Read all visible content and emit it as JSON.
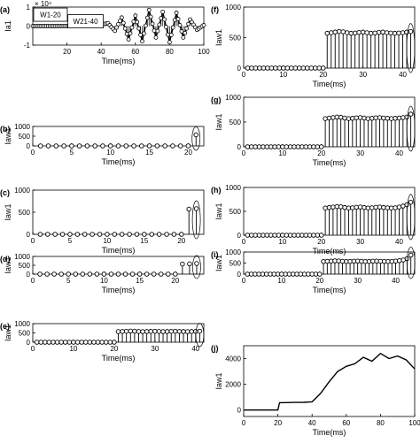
{
  "chart_data": [
    {
      "id": "a",
      "panel_label": "(a)",
      "type": "line",
      "xlabel": "Time(ms)",
      "ylabel": "Ia1",
      "xlim": [
        0,
        100
      ],
      "ylim": [
        -1,
        1
      ],
      "xticks": [
        "20",
        "40",
        "60",
        "80",
        "100"
      ],
      "yticks": [
        "-1",
        "0",
        "1"
      ],
      "exponent": "× 10⁴",
      "annotations": [
        "W1-20",
        "W21-40"
      ],
      "x": [
        0,
        4,
        8,
        12,
        16,
        20,
        24,
        28,
        32,
        36,
        40,
        44,
        48,
        52,
        56,
        60,
        64,
        68,
        72,
        76,
        80,
        84,
        88,
        92,
        96,
        100
      ],
      "y": [
        0,
        0,
        0,
        0,
        0,
        0,
        0,
        0,
        0,
        0,
        0.08,
        0.15,
        -0.25,
        0.45,
        -0.7,
        0.55,
        -0.8,
        0.85,
        -0.6,
        0.75,
        -0.85,
        0.7,
        -0.6,
        0.35,
        -0.2,
        0.05
      ]
    },
    {
      "id": "b",
      "panel_label": "(b)",
      "type": "stem",
      "xlabel": "Time(ms)",
      "ylabel": "Iaw1",
      "xlim": [
        0,
        22
      ],
      "ylim": [
        0,
        1000
      ],
      "xticks": [
        "0",
        "5",
        "10",
        "15",
        "20"
      ],
      "yticks": [
        "0",
        "500",
        "1000"
      ],
      "x": [
        1,
        2,
        3,
        4,
        5,
        6,
        7,
        8,
        9,
        10,
        11,
        12,
        13,
        14,
        15,
        16,
        17,
        18,
        19,
        20,
        21
      ],
      "y": [
        0,
        0,
        0,
        0,
        0,
        0,
        0,
        0,
        0,
        0,
        0,
        0,
        0,
        0,
        0,
        0,
        0,
        0,
        0,
        0,
        570
      ]
    },
    {
      "id": "c",
      "panel_label": "(c)",
      "type": "stem",
      "xlabel": "Time(ms)",
      "ylabel": "Iaw1",
      "xlim": [
        0,
        23
      ],
      "ylim": [
        0,
        1000
      ],
      "xticks": [
        "0",
        "5",
        "10",
        "15",
        "20"
      ],
      "yticks": [
        "0",
        "500",
        "1000"
      ],
      "x": [
        1,
        2,
        3,
        4,
        5,
        6,
        7,
        8,
        9,
        10,
        11,
        12,
        13,
        14,
        15,
        16,
        17,
        18,
        19,
        20,
        21,
        22
      ],
      "y": [
        0,
        0,
        0,
        0,
        0,
        0,
        0,
        0,
        0,
        0,
        0,
        0,
        0,
        0,
        0,
        0,
        0,
        0,
        0,
        0,
        570,
        580
      ]
    },
    {
      "id": "d",
      "panel_label": "(d)",
      "type": "stem",
      "xlabel": "Time(ms)",
      "ylabel": "Iaw1",
      "xlim": [
        0,
        24
      ],
      "ylim": [
        0,
        1000
      ],
      "xticks": [
        "0",
        "5",
        "10",
        "15",
        "20"
      ],
      "yticks": [
        "0",
        "500",
        "1000"
      ],
      "x": [
        1,
        2,
        3,
        4,
        5,
        6,
        7,
        8,
        9,
        10,
        11,
        12,
        13,
        14,
        15,
        16,
        17,
        18,
        19,
        20,
        21,
        22,
        23
      ],
      "y": [
        0,
        0,
        0,
        0,
        0,
        0,
        0,
        0,
        0,
        0,
        0,
        0,
        0,
        0,
        0,
        0,
        0,
        0,
        0,
        0,
        570,
        580,
        600
      ]
    },
    {
      "id": "e",
      "panel_label": "(e)",
      "type": "stem",
      "xlabel": "Time(ms)",
      "ylabel": "Iaw1",
      "xlim": [
        0,
        42
      ],
      "ylim": [
        0,
        1000
      ],
      "xticks": [
        "0",
        "10",
        "20",
        "30",
        "40"
      ],
      "yticks": [
        "0",
        "500",
        "1000"
      ],
      "x": [
        1,
        2,
        3,
        4,
        5,
        6,
        7,
        8,
        9,
        10,
        11,
        12,
        13,
        14,
        15,
        16,
        17,
        18,
        19,
        20,
        21,
        22,
        23,
        24,
        25,
        26,
        27,
        28,
        29,
        30,
        31,
        32,
        33,
        34,
        35,
        36,
        37,
        38,
        39,
        40,
        41
      ],
      "y": [
        0,
        0,
        0,
        0,
        0,
        0,
        0,
        0,
        0,
        0,
        0,
        0,
        0,
        0,
        0,
        0,
        0,
        0,
        0,
        0,
        570,
        580,
        590,
        600,
        595,
        580,
        570,
        575,
        585,
        590,
        580,
        570,
        575,
        585,
        590,
        580,
        575,
        570,
        575,
        580,
        590
      ]
    },
    {
      "id": "f",
      "panel_label": "(f)",
      "type": "stem",
      "xlabel": "Time(ms)",
      "ylabel": "Iaw1",
      "xlim": [
        0,
        43
      ],
      "ylim": [
        0,
        1000
      ],
      "xticks": [
        "0",
        "10",
        "20",
        "30",
        "40"
      ],
      "yticks": [
        "0",
        "500",
        "1000"
      ],
      "x": [
        1,
        2,
        3,
        4,
        5,
        6,
        7,
        8,
        9,
        10,
        11,
        12,
        13,
        14,
        15,
        16,
        17,
        18,
        19,
        20,
        21,
        22,
        23,
        24,
        25,
        26,
        27,
        28,
        29,
        30,
        31,
        32,
        33,
        34,
        35,
        36,
        37,
        38,
        39,
        40,
        41,
        42
      ],
      "y": [
        0,
        0,
        0,
        0,
        0,
        0,
        0,
        0,
        0,
        0,
        0,
        0,
        0,
        0,
        0,
        0,
        0,
        0,
        0,
        0,
        570,
        580,
        590,
        600,
        595,
        580,
        570,
        575,
        585,
        590,
        580,
        570,
        575,
        585,
        590,
        580,
        575,
        570,
        575,
        580,
        590,
        600
      ]
    },
    {
      "id": "g",
      "panel_label": "(g)",
      "type": "stem",
      "xlabel": "Time(ms)",
      "ylabel": "Iaw1",
      "xlim": [
        0,
        44
      ],
      "ylim": [
        0,
        1000
      ],
      "xticks": [
        "0",
        "10",
        "20",
        "30",
        "40"
      ],
      "yticks": [
        "0",
        "500",
        "1000"
      ],
      "x": [
        1,
        2,
        3,
        4,
        5,
        6,
        7,
        8,
        9,
        10,
        11,
        12,
        13,
        14,
        15,
        16,
        17,
        18,
        19,
        20,
        21,
        22,
        23,
        24,
        25,
        26,
        27,
        28,
        29,
        30,
        31,
        32,
        33,
        34,
        35,
        36,
        37,
        38,
        39,
        40,
        41,
        42,
        43
      ],
      "y": [
        0,
        0,
        0,
        0,
        0,
        0,
        0,
        0,
        0,
        0,
        0,
        0,
        0,
        0,
        0,
        0,
        0,
        0,
        0,
        0,
        570,
        580,
        590,
        600,
        595,
        580,
        570,
        575,
        585,
        590,
        580,
        570,
        575,
        585,
        590,
        580,
        575,
        570,
        575,
        580,
        590,
        600,
        660
      ]
    },
    {
      "id": "h",
      "panel_label": "(h)",
      "type": "stem",
      "xlabel": "Time(ms)",
      "ylabel": "Iaw1",
      "xlim": [
        0,
        44
      ],
      "ylim": [
        0,
        1000
      ],
      "xticks": [
        "0",
        "10",
        "20",
        "30",
        "40"
      ],
      "yticks": [
        "0",
        "500",
        "1000"
      ],
      "x": [
        1,
        2,
        3,
        4,
        5,
        6,
        7,
        8,
        9,
        10,
        11,
        12,
        13,
        14,
        15,
        16,
        17,
        18,
        19,
        20,
        21,
        22,
        23,
        24,
        25,
        26,
        27,
        28,
        29,
        30,
        31,
        32,
        33,
        34,
        35,
        36,
        37,
        38,
        39,
        40,
        41,
        42,
        43
      ],
      "y": [
        0,
        0,
        0,
        0,
        0,
        0,
        0,
        0,
        0,
        0,
        0,
        0,
        0,
        0,
        0,
        0,
        0,
        0,
        0,
        0,
        570,
        580,
        590,
        600,
        595,
        580,
        570,
        575,
        585,
        590,
        580,
        570,
        575,
        585,
        590,
        580,
        575,
        570,
        575,
        590,
        610,
        640,
        690
      ]
    },
    {
      "id": "i",
      "panel_label": "(i)",
      "type": "stem",
      "xlabel": "Time(ms)",
      "ylabel": "Iaw1",
      "xlim": [
        0,
        45
      ],
      "ylim": [
        0,
        1000
      ],
      "xticks": [
        "0",
        "10",
        "20",
        "30",
        "40"
      ],
      "yticks": [
        "0",
        "500",
        "1000"
      ],
      "x": [
        1,
        2,
        3,
        4,
        5,
        6,
        7,
        8,
        9,
        10,
        11,
        12,
        13,
        14,
        15,
        16,
        17,
        18,
        19,
        20,
        21,
        22,
        23,
        24,
        25,
        26,
        27,
        28,
        29,
        30,
        31,
        32,
        33,
        34,
        35,
        36,
        37,
        38,
        39,
        40,
        41,
        42,
        43,
        44
      ],
      "y": [
        0,
        0,
        0,
        0,
        0,
        0,
        0,
        0,
        0,
        0,
        0,
        0,
        0,
        0,
        0,
        0,
        0,
        0,
        0,
        0,
        570,
        580,
        590,
        600,
        595,
        580,
        570,
        575,
        585,
        590,
        580,
        570,
        575,
        585,
        590,
        580,
        575,
        570,
        575,
        590,
        610,
        640,
        700,
        860
      ]
    },
    {
      "id": "j",
      "panel_label": "(j)",
      "type": "line",
      "xlabel": "Time(ms)",
      "ylabel": "Iaw1",
      "xlim": [
        0,
        100
      ],
      "ylim": [
        -500,
        5000
      ],
      "xticks": [
        "0",
        "20",
        "40",
        "60",
        "80",
        "100"
      ],
      "yticks": [
        "0",
        "2000",
        "4000"
      ],
      "x": [
        0,
        5,
        10,
        15,
        20,
        21,
        25,
        30,
        35,
        40,
        42,
        45,
        50,
        55,
        60,
        65,
        70,
        75,
        80,
        85,
        90,
        95,
        100
      ],
      "y": [
        0,
        0,
        0,
        0,
        0,
        570,
        580,
        590,
        600,
        640,
        900,
        1300,
        2200,
        3000,
        3400,
        3600,
        4100,
        3800,
        4400,
        4000,
        4200,
        3900,
        3200
      ]
    }
  ]
}
